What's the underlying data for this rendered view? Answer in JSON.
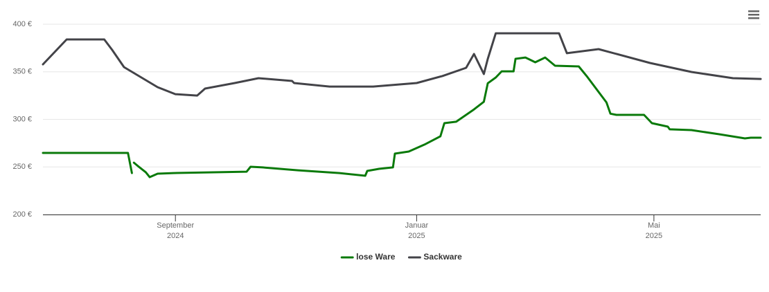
{
  "chart_data": {
    "type": "line",
    "xlim": [
      "2024-06-26",
      "2025-06-24"
    ],
    "xticks": [
      {
        "value": "2024-09-01",
        "label": [
          "September",
          "2024"
        ]
      },
      {
        "value": "2025-01-01",
        "label": [
          "Januar",
          "2025"
        ]
      },
      {
        "value": "2025-05-01",
        "label": [
          "Mai",
          "2025"
        ]
      }
    ],
    "ylim": [
      200,
      400
    ],
    "yticks": [
      {
        "value": 200,
        "label": "200 €"
      },
      {
        "value": 250,
        "label": "250 €"
      },
      {
        "value": 300,
        "label": "300 €"
      },
      {
        "value": 350,
        "label": "350 €"
      },
      {
        "value": 400,
        "label": "400 €"
      }
    ],
    "grid": true,
    "legend": "bottom",
    "series": [
      {
        "name": "lose Ware",
        "color": "#0a7a0a",
        "x": [
          "2024-06-26",
          "2024-08-08",
          "2024-08-10",
          "2024-08-10",
          "2024-08-11",
          "2024-08-13",
          "2024-08-17",
          "2024-08-19",
          "2024-08-23",
          "2024-08-31",
          "2024-10-07",
          "2024-10-09",
          "2024-10-15",
          "2024-11-02",
          "2024-11-23",
          "2024-12-06",
          "2024-12-07",
          "2024-12-13",
          "2024-12-20",
          "2024-12-21",
          "2024-12-28",
          "2025-01-05",
          "2025-01-13",
          "2025-01-15",
          "2025-01-21",
          "2025-01-30",
          "2025-02-04",
          "2025-02-06",
          "2025-02-10",
          "2025-02-13",
          "2025-02-19",
          "2025-02-20",
          "2025-02-25",
          "2025-03-02",
          "2025-03-07",
          "2025-03-12",
          "2025-03-24",
          "2025-03-28",
          "2025-04-07",
          "2025-04-09",
          "2025-04-12",
          "2025-04-26",
          "2025-04-28",
          "2025-04-30",
          "2025-05-08",
          "2025-05-09",
          "2025-05-20",
          "2025-06-03",
          "2025-06-16",
          "2025-06-19",
          "2025-06-24"
        ],
        "values": [
          264.7,
          264.7,
          243.6,
          null,
          254.5,
          251,
          244.4,
          239.3,
          242.9,
          243.6,
          245,
          250.2,
          249.5,
          246.5,
          243.6,
          240.7,
          245.8,
          248,
          249.5,
          264,
          266.2,
          273.5,
          282.2,
          296,
          297.5,
          310.5,
          318.5,
          338,
          344,
          350.5,
          350.5,
          363.6,
          365,
          360,
          365,
          356.4,
          355.6,
          345.5,
          317.8,
          306,
          304.7,
          304.7,
          300.4,
          296,
          292.4,
          289.5,
          288.7,
          284.4,
          280,
          280.7,
          280.7
        ]
      },
      {
        "name": "Sackware",
        "color": "#434348",
        "x": [
          "2024-06-26",
          "2024-07-08",
          "2024-07-27",
          "2024-07-31",
          "2024-08-06",
          "2024-08-23",
          "2024-09-01",
          "2024-09-12",
          "2024-09-16",
          "2024-10-01",
          "2024-10-13",
          "2024-10-30",
          "2024-10-31",
          "2024-11-18",
          "2024-12-10",
          "2025-01-01",
          "2025-01-14",
          "2025-01-26",
          "2025-01-30",
          "2025-02-04",
          "2025-02-06",
          "2025-02-10",
          "2025-03-14",
          "2025-03-18",
          "2025-04-03",
          "2025-04-29",
          "2025-05-20",
          "2025-06-10",
          "2025-06-24"
        ],
        "values": [
          357.8,
          384,
          384,
          373,
          354.9,
          333.8,
          326.5,
          325,
          332.4,
          338.2,
          343.3,
          340.4,
          338.2,
          334.5,
          334.5,
          338.2,
          345.5,
          354.2,
          368.7,
          347.6,
          363.6,
          390.5,
          390.5,
          369.5,
          373.8,
          359.3,
          349.8,
          343.3,
          342.5
        ]
      }
    ]
  }
}
